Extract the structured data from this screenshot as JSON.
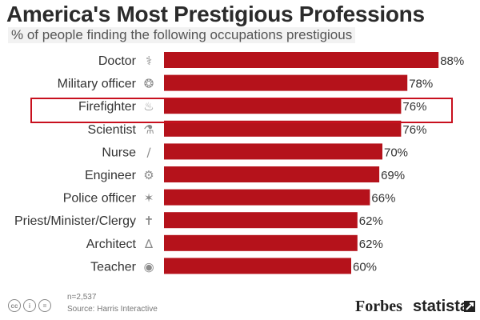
{
  "header": {
    "title": "America's Most Prestigious Professions",
    "subtitle": "% of people finding the following occupations prestigious"
  },
  "chart_data": {
    "type": "bar",
    "orientation": "horizontal",
    "title": "America's Most Prestigious Professions",
    "subtitle": "% of people finding the following occupations prestigious",
    "categories": [
      "Doctor",
      "Military officer",
      "Firefighter",
      "Scientist",
      "Nurse",
      "Engineer",
      "Police officer",
      "Priest/Minister/Clergy",
      "Architect",
      "Teacher"
    ],
    "values": [
      88,
      78,
      76,
      76,
      70,
      69,
      66,
      62,
      62,
      60
    ],
    "value_labels": [
      "88%",
      "78%",
      "76%",
      "76%",
      "70%",
      "69%",
      "66%",
      "62%",
      "62%",
      "60%"
    ],
    "icons": [
      "stethoscope-icon",
      "eagle-icon",
      "flame-icon",
      "microscope-icon",
      "syringe-icon",
      "gears-icon",
      "star-badge-icon",
      "cross-icon",
      "compass-icon",
      "apple-icon"
    ],
    "highlighted_category": "Firefighter",
    "xlim": [
      0,
      100
    ],
    "bar_color": "#b5121b",
    "highlight_color": "#c8101e"
  },
  "footer": {
    "note": "n=2,537",
    "source": "Source: Harris Interactive",
    "cc_labels": [
      "cc",
      "i",
      "="
    ],
    "brand_forbes": "Forbes",
    "brand_statista": "statista"
  }
}
